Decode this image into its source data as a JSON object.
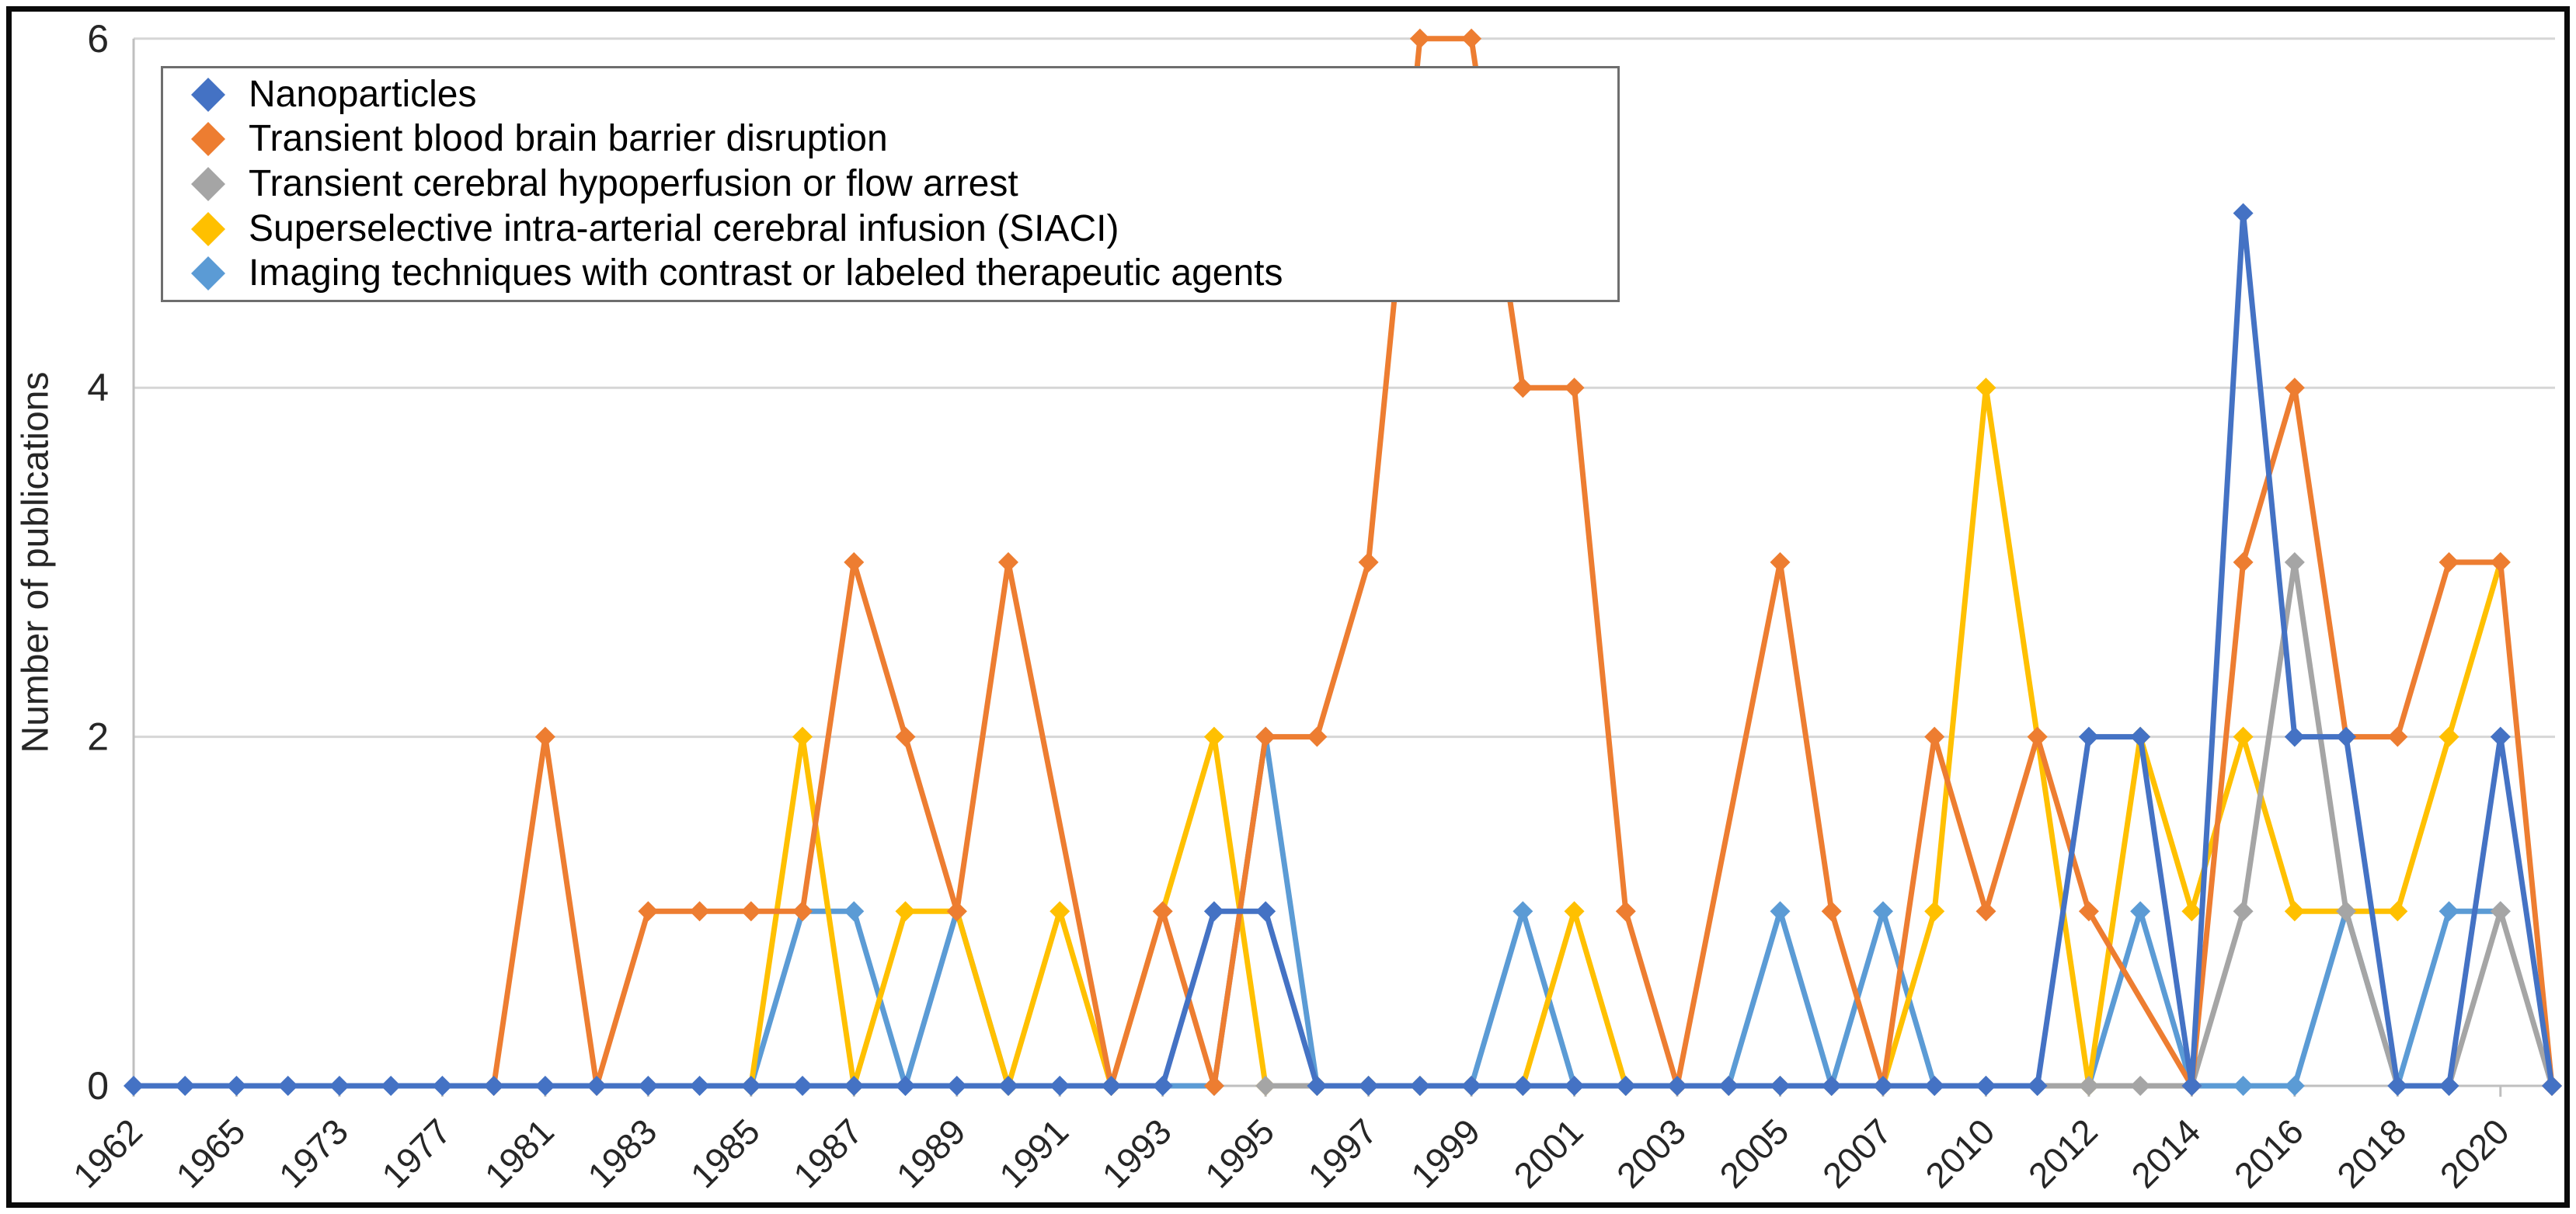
{
  "chart_data": {
    "type": "line",
    "title": "",
    "xlabel": "",
    "ylabel": "Number of publications",
    "ylim": [
      0,
      6
    ],
    "yticks": [
      0,
      2,
      4,
      6
    ],
    "grid": "horizontal",
    "legend_position": "top-left-inside",
    "grid_color": "#D6D6D6",
    "axis_color": "#BFBFBF",
    "tick_label_color": "#262626",
    "marker": "diamond",
    "categories": [
      "1962",
      "",
      "1965",
      "",
      "1973",
      "",
      "1977",
      "",
      "1981",
      "",
      "1983",
      "",
      "1985",
      "",
      "1987",
      "",
      "1989",
      "",
      "1991",
      "",
      "1993",
      "",
      "1995",
      "",
      "1997",
      "",
      "1999",
      "",
      "2001",
      "",
      "2003",
      "",
      "2005",
      "",
      "2007",
      "",
      "2010",
      "",
      "2012",
      "",
      "2014",
      "",
      "2016",
      "",
      "2018",
      "",
      "2020",
      ""
    ],
    "series": [
      {
        "label": "Nanoparticles",
        "color": "#4472C4",
        "values": [
          0,
          0,
          0,
          0,
          0,
          0,
          0,
          0,
          0,
          0,
          0,
          0,
          0,
          0,
          0,
          0,
          0,
          0,
          0,
          0,
          0,
          1,
          1,
          0,
          0,
          0,
          0,
          0,
          0,
          0,
          0,
          0,
          0,
          0,
          0,
          0,
          0,
          0,
          2,
          2,
          0,
          5,
          2,
          2,
          0,
          0,
          2,
          0
        ]
      },
      {
        "label": "Transient blood brain barrier disruption",
        "color": "#ED7D31",
        "values": [
          null,
          null,
          null,
          null,
          null,
          null,
          null,
          0,
          2,
          0,
          1,
          1,
          1,
          1,
          3,
          2,
          1,
          3,
          null,
          0,
          1,
          0,
          2,
          2,
          3,
          6,
          6,
          4,
          4,
          1,
          0,
          null,
          3,
          1,
          0,
          2,
          1,
          2,
          1,
          null,
          0,
          3,
          4,
          2,
          2,
          3,
          3,
          0
        ]
      },
      {
        "label": "Transient cerebral hypoperfusion or flow arrest",
        "color": "#A5A5A5",
        "values": [
          null,
          null,
          null,
          null,
          null,
          null,
          null,
          null,
          null,
          null,
          null,
          null,
          null,
          null,
          null,
          null,
          null,
          null,
          null,
          null,
          null,
          null,
          0,
          0,
          0,
          0,
          0,
          0,
          0,
          0,
          0,
          0,
          0,
          0,
          0,
          0,
          0,
          0,
          0,
          0,
          0,
          1,
          3,
          1,
          0,
          0,
          1,
          0
        ]
      },
      {
        "label": "Superselective intra-arterial cerebral infusion (SIACI)",
        "color": "#FFC000",
        "values": [
          null,
          null,
          null,
          null,
          null,
          null,
          null,
          null,
          null,
          null,
          null,
          null,
          0,
          2,
          0,
          1,
          1,
          0,
          1,
          0,
          null,
          2,
          0,
          0,
          0,
          0,
          0,
          0,
          1,
          0,
          0,
          0,
          0,
          0,
          0,
          1,
          4,
          2,
          0,
          2,
          1,
          2,
          1,
          1,
          1,
          2,
          3,
          null
        ]
      },
      {
        "label": "Imaging techniques with contrast or labeled therapeutic agents",
        "color": "#5B9BD5",
        "values": [
          null,
          null,
          null,
          null,
          null,
          null,
          null,
          null,
          null,
          null,
          null,
          null,
          0,
          1,
          1,
          0,
          1,
          0,
          0,
          0,
          0,
          0,
          2,
          0,
          0,
          0,
          0,
          1,
          0,
          0,
          0,
          0,
          1,
          0,
          1,
          0,
          0,
          0,
          0,
          1,
          0,
          0,
          0,
          1,
          0,
          1,
          1,
          null
        ]
      }
    ]
  }
}
